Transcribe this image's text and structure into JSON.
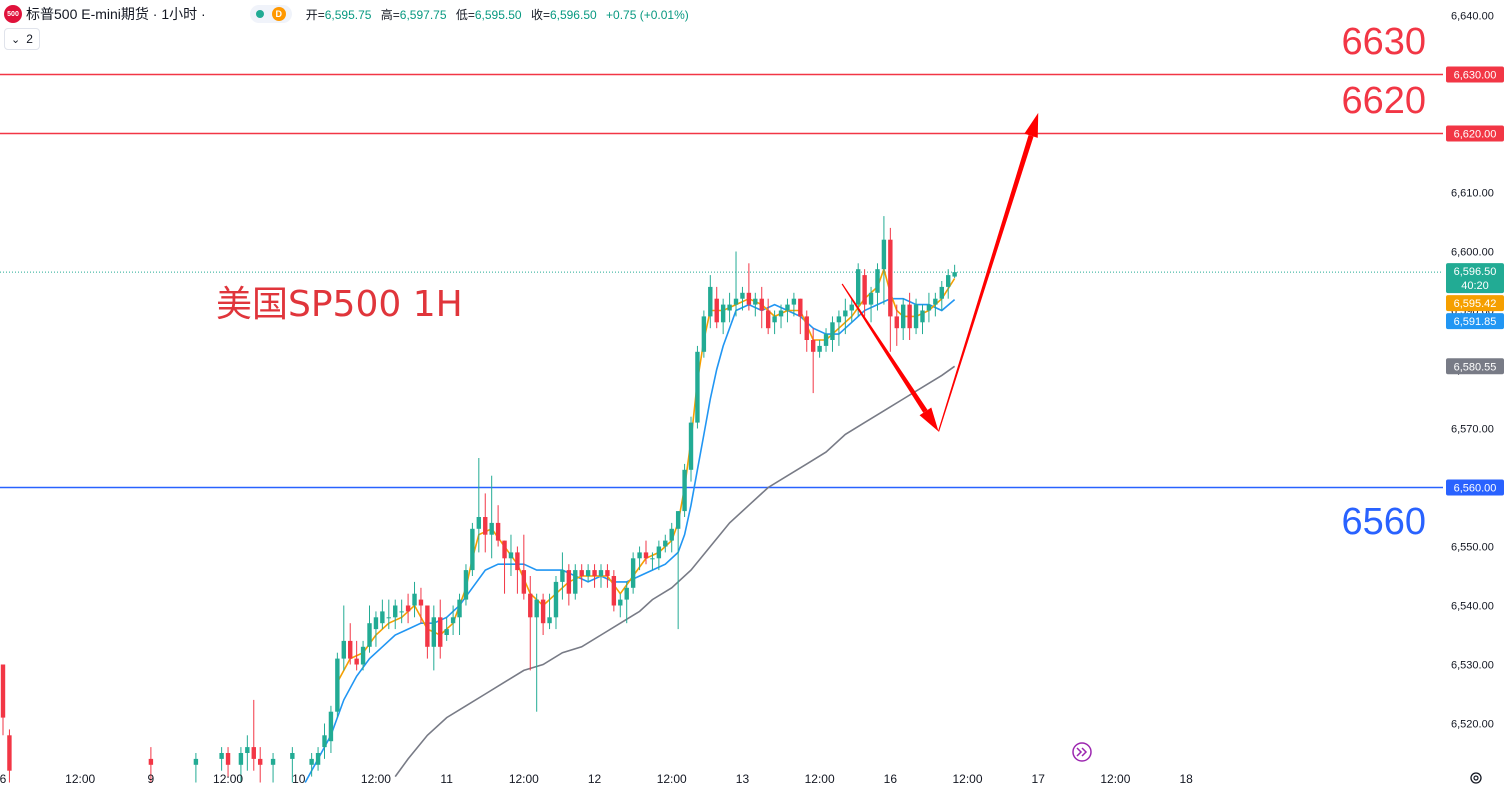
{
  "header": {
    "symbol_logo": "500",
    "symbol_title": "标普500 E-mini期货 · 1小时 ·",
    "status_letter": "D",
    "ohlc": [
      {
        "label": "开=",
        "value": "6,595.75"
      },
      {
        "label": "高=",
        "value": "6,597.75"
      },
      {
        "label": "低=",
        "value": "6,595.50"
      },
      {
        "label": "收=",
        "value": "6,596.50"
      },
      {
        "label": "",
        "value": "+0.75 (+0.01%)"
      }
    ],
    "indicator_count": "2"
  },
  "colors": {
    "up": "#22ab94",
    "down": "#f23645",
    "ema_fast": "#f59f00",
    "ema_mid": "#2196f3",
    "ema_slow": "#787b86",
    "resistance": "#f23645",
    "support": "#2962ff",
    "arrow": "#ff0000"
  },
  "icons": {
    "replay": "replay-forward-icon",
    "settings": "gear-icon"
  },
  "annotations": {
    "chart_title": "美国SP500 1H",
    "label_6630": "6630",
    "label_6620": "6620",
    "label_6560": "6560"
  },
  "chart_data": {
    "type": "candlestick",
    "title": "",
    "ylim": [
      6513,
      6643
    ],
    "y_ticks": [
      6640,
      6630,
      6620,
      6610,
      6600,
      6590,
      6580,
      6570,
      6560,
      6550,
      6540,
      6530,
      6520
    ],
    "y_tick_labels": [
      "6,640.00",
      "6,630.00",
      "6,620.00",
      "6,610.00",
      "6,600.00",
      "6,590.00",
      "6,580.00",
      "6,570.00",
      "6,560.00",
      "6,550.00",
      "6,540.00",
      "6,530.00",
      "6,520.00"
    ],
    "x_ticks": [
      {
        "label": "6",
        "bar": 0
      },
      {
        "label": "12:00",
        "bar": 12
      },
      {
        "label": "9",
        "bar": 23
      },
      {
        "label": "12:00",
        "bar": 35
      },
      {
        "label": "10",
        "bar": 46
      },
      {
        "label": "12:00",
        "bar": 58
      },
      {
        "label": "11",
        "bar": 69
      },
      {
        "label": "12:00",
        "bar": 81
      },
      {
        "label": "12",
        "bar": 92
      },
      {
        "label": "12:00",
        "bar": 104
      },
      {
        "label": "13",
        "bar": 115
      },
      {
        "label": "12:00",
        "bar": 127
      },
      {
        "label": "16",
        "bar": 138
      },
      {
        "label": "12:00",
        "bar": 150
      },
      {
        "label": "17",
        "bar": 161
      },
      {
        "label": "12:00",
        "bar": 173
      },
      {
        "label": "18",
        "bar": 184
      }
    ],
    "horizontal_lines": [
      {
        "price": 6630,
        "label": "6,630.00",
        "role": "resistance"
      },
      {
        "price": 6620,
        "label": "6,620.00",
        "role": "resistance"
      },
      {
        "price": 6560,
        "label": "6,560.00",
        "role": "support"
      }
    ],
    "price_tags": [
      {
        "price": 6596.5,
        "label": "6,596.50",
        "sub": "40:20",
        "color": "#22ab94"
      },
      {
        "price": 6595.42,
        "label": "6,595.42",
        "color": "#f59f00"
      },
      {
        "price": 6591.85,
        "label": "6,591.85",
        "color": "#2196f3"
      },
      {
        "price": 6580.55,
        "label": "6,580.55",
        "color": "#787b86"
      }
    ],
    "current_price": 6596.5,
    "forecast_path": [
      {
        "bar": 130.5,
        "price": 6594.5
      },
      {
        "bar": 145.5,
        "price": 6569.5
      },
      {
        "bar": 161,
        "price": 6623.5
      }
    ],
    "candles": [
      [
        0,
        6530,
        6530,
        6518,
        6521
      ],
      [
        1,
        6518,
        6519,
        6510,
        6512
      ],
      [
        23,
        6514,
        6516,
        6510,
        6513
      ],
      [
        30,
        6513,
        6515,
        6510,
        6514
      ],
      [
        34,
        6514,
        6516,
        6512,
        6515
      ],
      [
        35,
        6515,
        6516,
        6511,
        6513
      ],
      [
        37,
        6513,
        6516,
        6510,
        6515
      ],
      [
        38,
        6515,
        6518,
        6512,
        6516
      ],
      [
        39,
        6516,
        6524,
        6512,
        6514
      ],
      [
        40,
        6514,
        6516,
        6510,
        6513
      ],
      [
        42,
        6513,
        6515,
        6510,
        6514
      ],
      [
        45,
        6514,
        6516,
        6510,
        6515
      ],
      [
        48,
        6513,
        6515,
        6511,
        6514
      ],
      [
        49,
        6513,
        6516,
        6512,
        6515
      ],
      [
        50,
        6516,
        6520,
        6514,
        6518
      ],
      [
        51,
        6517,
        6523,
        6515,
        6522
      ],
      [
        52,
        6522,
        6532,
        6521,
        6531
      ],
      [
        53,
        6531,
        6540,
        6529,
        6534
      ],
      [
        54,
        6534,
        6537,
        6530,
        6531
      ],
      [
        55,
        6531,
        6534,
        6529,
        6530
      ],
      [
        56,
        6530,
        6534,
        6529,
        6533
      ],
      [
        57,
        6533,
        6540,
        6532,
        6537
      ],
      [
        58,
        6536,
        6539,
        6533,
        6538
      ],
      [
        59,
        6537,
        6541,
        6536,
        6539
      ],
      [
        60,
        6538,
        6541,
        6536,
        6538
      ],
      [
        61,
        6538,
        6541,
        6536,
        6540
      ],
      [
        62,
        6539,
        6541,
        6537,
        6539
      ],
      [
        63,
        6540,
        6542,
        6537,
        6539
      ],
      [
        64,
        6540,
        6544,
        6538,
        6542
      ],
      [
        65,
        6541,
        6543,
        6537,
        6540
      ],
      [
        66,
        6540,
        6540,
        6531,
        6533
      ],
      [
        67,
        6533,
        6540,
        6529,
        6538
      ],
      [
        68,
        6538,
        6541,
        6531,
        6533
      ],
      [
        69,
        6535,
        6538,
        6534,
        6536
      ],
      [
        70,
        6537,
        6540,
        6535,
        6538
      ],
      [
        71,
        6538,
        6542,
        6535,
        6541
      ],
      [
        72,
        6541,
        6547,
        6540,
        6546
      ],
      [
        73,
        6546,
        6554,
        6545,
        6553
      ],
      [
        74,
        6553,
        6565,
        6549,
        6555
      ],
      [
        75,
        6555,
        6559,
        6549,
        6552
      ],
      [
        76,
        6552,
        6562,
        6548,
        6554
      ],
      [
        77,
        6554,
        6557,
        6550,
        6551
      ],
      [
        78,
        6551,
        6551,
        6542,
        6548
      ],
      [
        79,
        6548,
        6552,
        6545,
        6549
      ],
      [
        80,
        6549,
        6550,
        6542,
        6546
      ],
      [
        81,
        6546,
        6552,
        6541,
        6542
      ],
      [
        82,
        6542,
        6545,
        6529,
        6538
      ],
      [
        83,
        6538,
        6542,
        6522,
        6541
      ],
      [
        84,
        6541,
        6542,
        6535,
        6537
      ],
      [
        85,
        6537,
        6542,
        6536,
        6538
      ],
      [
        86,
        6538,
        6545,
        6536,
        6544
      ],
      [
        87,
        6544,
        6549,
        6541,
        6546
      ],
      [
        88,
        6546,
        6547,
        6540,
        6542
      ],
      [
        89,
        6542,
        6547,
        6541,
        6546
      ],
      [
        90,
        6546,
        6547,
        6543,
        6545
      ],
      [
        91,
        6545,
        6547,
        6544,
        6546
      ],
      [
        92,
        6546,
        6547,
        6543,
        6545
      ],
      [
        93,
        6545,
        6547,
        6543,
        6546
      ],
      [
        94,
        6546,
        6547,
        6543,
        6545
      ],
      [
        95,
        6545,
        6546,
        6539,
        6540
      ],
      [
        96,
        6540,
        6542,
        6538,
        6541
      ],
      [
        97,
        6541,
        6544,
        6537,
        6543
      ],
      [
        98,
        6543,
        6549,
        6542,
        6548
      ],
      [
        99,
        6548,
        6550,
        6546,
        6549
      ],
      [
        100,
        6549,
        6551,
        6547,
        6548
      ],
      [
        101,
        6548,
        6549,
        6546,
        6548
      ],
      [
        102,
        6548,
        6551,
        6546,
        6550
      ],
      [
        103,
        6550,
        6552,
        6549,
        6551
      ],
      [
        104,
        6551,
        6554,
        6549,
        6553
      ],
      [
        105,
        6553,
        6556,
        6536,
        6556
      ],
      [
        106,
        6556,
        6564,
        6555,
        6563
      ],
      [
        107,
        6563,
        6572,
        6561,
        6571
      ],
      [
        108,
        6571,
        6584,
        6570,
        6583
      ],
      [
        109,
        6583,
        6590,
        6582,
        6589
      ],
      [
        110,
        6589,
        6596,
        6587,
        6594
      ],
      [
        111,
        6592,
        6594,
        6587,
        6588
      ],
      [
        112,
        6588,
        6592,
        6586,
        6591
      ],
      [
        113,
        6590,
        6593,
        6588,
        6591
      ],
      [
        114,
        6591,
        6600,
        6589,
        6592
      ],
      [
        115,
        6592,
        6594,
        6590,
        6593
      ],
      [
        116,
        6593,
        6598,
        6590,
        6591
      ],
      [
        117,
        6591,
        6593,
        6589,
        6592
      ],
      [
        118,
        6592,
        6594,
        6587,
        6590
      ],
      [
        119,
        6590,
        6592,
        6586,
        6587
      ],
      [
        120,
        6588,
        6590,
        6586,
        6589
      ],
      [
        121,
        6589,
        6591,
        6587,
        6590
      ],
      [
        122,
        6590,
        6592,
        6588,
        6591
      ],
      [
        123,
        6591,
        6593,
        6589,
        6592
      ],
      [
        124,
        6592,
        6592,
        6586,
        6589
      ],
      [
        125,
        6589,
        6590,
        6583,
        6585
      ],
      [
        126,
        6585,
        6587,
        6576,
        6583
      ],
      [
        127,
        6583,
        6585,
        6582,
        6584
      ],
      [
        128,
        6584,
        6587,
        6583,
        6586
      ],
      [
        129,
        6585,
        6589,
        6583,
        6588
      ],
      [
        130,
        6588,
        6590,
        6584,
        6589
      ],
      [
        131,
        6589,
        6592,
        6586,
        6590
      ],
      [
        132,
        6590,
        6592,
        6588,
        6591
      ],
      [
        133,
        6591,
        6598,
        6589,
        6597
      ],
      [
        134,
        6596,
        6597,
        6589,
        6591
      ],
      [
        135,
        6591,
        6594,
        6588,
        6593
      ],
      [
        136,
        6593,
        6598,
        6590,
        6597
      ],
      [
        137,
        6597,
        6606,
        6591,
        6602
      ],
      [
        138,
        6602,
        6604,
        6583,
        6589
      ],
      [
        139,
        6589,
        6591,
        6584,
        6587
      ],
      [
        140,
        6587,
        6592,
        6585,
        6591
      ],
      [
        141,
        6591,
        6593,
        6585,
        6587
      ],
      [
        142,
        6587,
        6592,
        6586,
        6591
      ],
      [
        143,
        6588,
        6591,
        6586,
        6590
      ],
      [
        144,
        6590,
        6593,
        6588,
        6591
      ],
      [
        145,
        6591,
        6593,
        6589,
        6592
      ],
      [
        146,
        6592,
        6595,
        6590,
        6594
      ],
      [
        147,
        6594,
        6597,
        6592,
        6596
      ],
      [
        148,
        6595.75,
        6597.75,
        6595.5,
        6596.5
      ]
    ],
    "ema_fast": [
      [
        52,
        6527
      ],
      [
        54,
        6531
      ],
      [
        56,
        6532
      ],
      [
        58,
        6535
      ],
      [
        60,
        6537
      ],
      [
        62,
        6538
      ],
      [
        64,
        6540
      ],
      [
        66,
        6536
      ],
      [
        68,
        6535
      ],
      [
        70,
        6537
      ],
      [
        72,
        6543
      ],
      [
        73,
        6548
      ],
      [
        74,
        6552
      ],
      [
        76,
        6553
      ],
      [
        78,
        6550
      ],
      [
        80,
        6547
      ],
      [
        82,
        6542
      ],
      [
        84,
        6540
      ],
      [
        86,
        6542
      ],
      [
        88,
        6544
      ],
      [
        90,
        6545
      ],
      [
        92,
        6545
      ],
      [
        94,
        6545
      ],
      [
        96,
        6542
      ],
      [
        98,
        6545
      ],
      [
        100,
        6548
      ],
      [
        102,
        6549
      ],
      [
        104,
        6551
      ],
      [
        105,
        6554
      ],
      [
        106,
        6560
      ],
      [
        107,
        6568
      ],
      [
        108,
        6578
      ],
      [
        109,
        6585
      ],
      [
        110,
        6590
      ],
      [
        112,
        6590
      ],
      [
        114,
        6591
      ],
      [
        116,
        6592
      ],
      [
        118,
        6591
      ],
      [
        120,
        6589
      ],
      [
        122,
        6590
      ],
      [
        124,
        6590
      ],
      [
        126,
        6585
      ],
      [
        128,
        6585
      ],
      [
        130,
        6587
      ],
      [
        132,
        6589
      ],
      [
        134,
        6592
      ],
      [
        136,
        6594
      ],
      [
        137,
        6597
      ],
      [
        138,
        6593
      ],
      [
        139,
        6590
      ],
      [
        140,
        6589
      ],
      [
        142,
        6589
      ],
      [
        144,
        6590
      ],
      [
        146,
        6592
      ],
      [
        148,
        6595.42
      ]
    ],
    "ema_mid": [
      [
        47,
        6510
      ],
      [
        49,
        6514
      ],
      [
        51,
        6518
      ],
      [
        53,
        6524
      ],
      [
        55,
        6528
      ],
      [
        57,
        6531
      ],
      [
        59,
        6533
      ],
      [
        61,
        6535
      ],
      [
        63,
        6536
      ],
      [
        65,
        6537
      ],
      [
        67,
        6537
      ],
      [
        69,
        6538
      ],
      [
        71,
        6540
      ],
      [
        73,
        6543
      ],
      [
        75,
        6546
      ],
      [
        77,
        6547
      ],
      [
        79,
        6547
      ],
      [
        81,
        6547
      ],
      [
        83,
        6546
      ],
      [
        85,
        6546
      ],
      [
        87,
        6546
      ],
      [
        89,
        6545
      ],
      [
        91,
        6544
      ],
      [
        93,
        6545
      ],
      [
        95,
        6544
      ],
      [
        97,
        6544
      ],
      [
        99,
        6545
      ],
      [
        101,
        6546
      ],
      [
        103,
        6547
      ],
      [
        105,
        6549
      ],
      [
        106,
        6552
      ],
      [
        107,
        6557
      ],
      [
        108,
        6563
      ],
      [
        109,
        6569
      ],
      [
        110,
        6575
      ],
      [
        111,
        6580
      ],
      [
        112,
        6584
      ],
      [
        113,
        6587
      ],
      [
        114,
        6590
      ],
      [
        116,
        6591
      ],
      [
        118,
        6590
      ],
      [
        120,
        6591
      ],
      [
        122,
        6590
      ],
      [
        124,
        6589
      ],
      [
        126,
        6587
      ],
      [
        128,
        6586
      ],
      [
        130,
        6586
      ],
      [
        132,
        6588
      ],
      [
        134,
        6590
      ],
      [
        136,
        6591
      ],
      [
        138,
        6592
      ],
      [
        140,
        6592
      ],
      [
        142,
        6591
      ],
      [
        144,
        6591
      ],
      [
        146,
        6590
      ],
      [
        148,
        6591.85
      ]
    ],
    "ema_slow": [
      [
        61,
        6511
      ],
      [
        63,
        6514
      ],
      [
        66,
        6518
      ],
      [
        69,
        6521
      ],
      [
        72,
        6523
      ],
      [
        75,
        6525
      ],
      [
        78,
        6527
      ],
      [
        81,
        6529
      ],
      [
        84,
        6530
      ],
      [
        87,
        6532
      ],
      [
        90,
        6533
      ],
      [
        93,
        6535
      ],
      [
        96,
        6537
      ],
      [
        99,
        6539
      ],
      [
        101,
        6541
      ],
      [
        104,
        6543
      ],
      [
        107,
        6546
      ],
      [
        110,
        6550
      ],
      [
        113,
        6554
      ],
      [
        116,
        6557
      ],
      [
        119,
        6560
      ],
      [
        122,
        6562
      ],
      [
        125,
        6564
      ],
      [
        128,
        6566
      ],
      [
        131,
        6569
      ],
      [
        134,
        6571
      ],
      [
        137,
        6573
      ],
      [
        140,
        6575
      ],
      [
        143,
        6577
      ],
      [
        146,
        6579
      ],
      [
        148,
        6580.55
      ]
    ]
  }
}
